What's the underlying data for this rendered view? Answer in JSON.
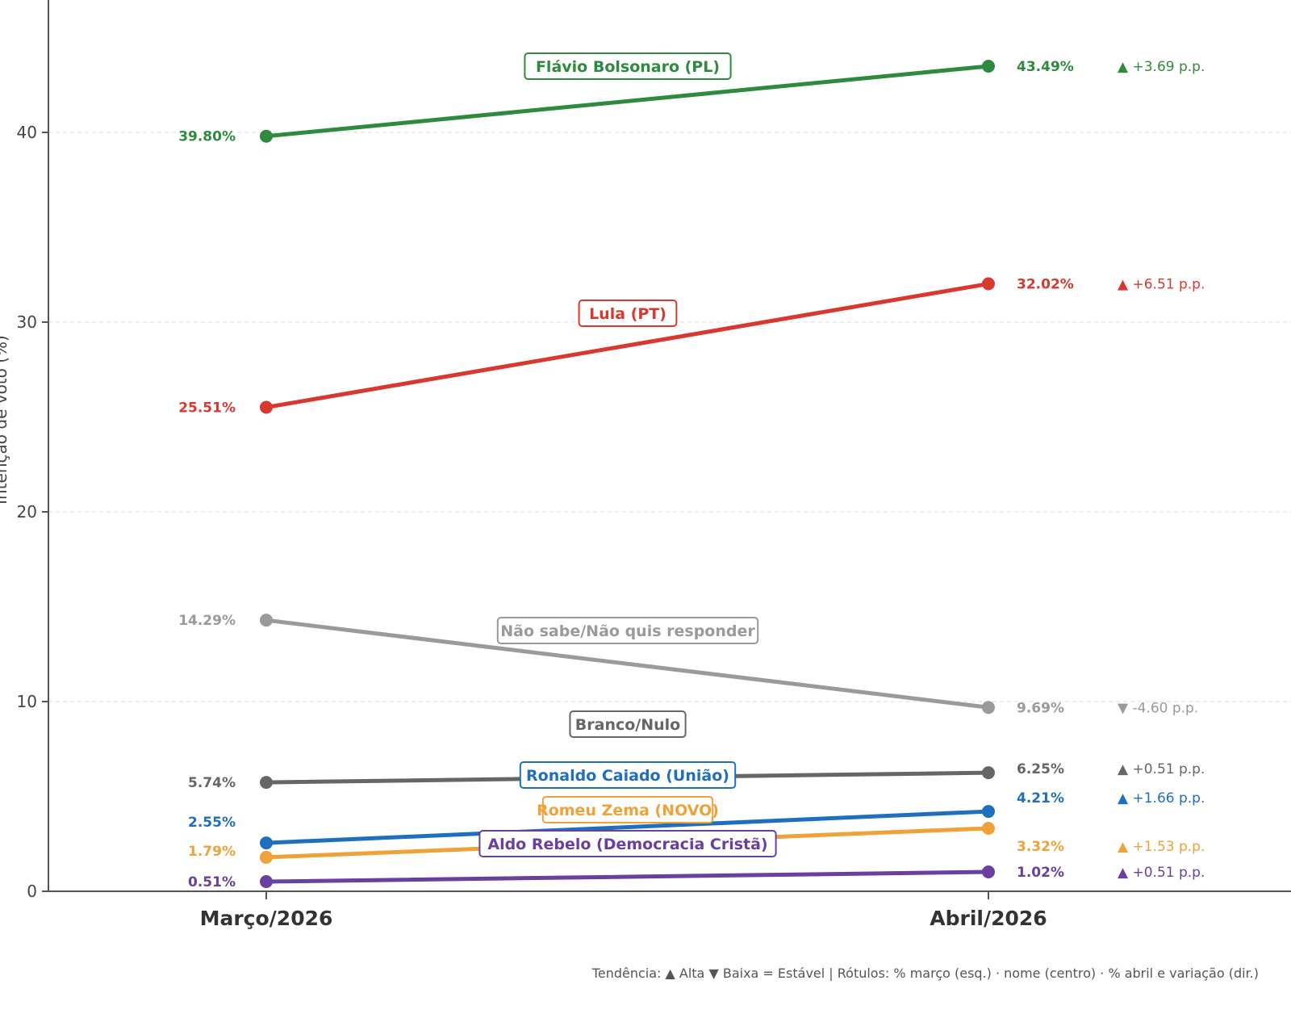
{
  "chart_data": {
    "type": "line",
    "title": "",
    "xlabel": "",
    "ylabel": "Intenção de voto (%)",
    "categories": [
      "Março/2026",
      "Abril/2026"
    ],
    "ylim": [
      0,
      45
    ],
    "yticks": [
      0,
      10,
      20,
      30,
      40
    ],
    "grid": true,
    "series": [
      {
        "name": "Flávio Bolsonaro (PL)",
        "color": "#2e8b3e",
        "values": [
          39.8,
          43.49
        ],
        "labels": [
          "39.80%",
          "43.49%"
        ],
        "change": "+3.69 p.p.",
        "trend": "up"
      },
      {
        "name": "Lula (PT)",
        "color": "#d9382f",
        "values": [
          25.51,
          32.02
        ],
        "labels": [
          "25.51%",
          "32.02%"
        ],
        "change": "+6.51 p.p.",
        "trend": "up"
      },
      {
        "name": "Não sabe/Não quis responder",
        "color": "#9a9a9a",
        "values": [
          14.29,
          9.69
        ],
        "labels": [
          "14.29%",
          "9.69%"
        ],
        "change": "-4.60 p.p.",
        "trend": "down"
      },
      {
        "name": "Branco/Nulo",
        "color": "#666666",
        "values": [
          5.74,
          6.25
        ],
        "labels": [
          "5.74%",
          "6.25%"
        ],
        "change": "+0.51 p.p.",
        "trend": "up"
      },
      {
        "name": "Ronaldo Caiado (União)",
        "color": "#1f6fbf",
        "values": [
          2.55,
          4.21
        ],
        "labels": [
          "2.55%",
          "4.21%"
        ],
        "change": "+1.66 p.p.",
        "trend": "up"
      },
      {
        "name": "Romeu Zema (NOVO)",
        "color": "#f0a23a",
        "values": [
          1.79,
          3.32
        ],
        "labels": [
          "1.79%",
          "3.32%"
        ],
        "change": "+1.53 p.p.",
        "trend": "up"
      },
      {
        "name": "Aldo Rebelo (Democracia Cristã)",
        "color": "#6a3fa0",
        "values": [
          0.51,
          1.02
        ],
        "labels": [
          "0.51%",
          "1.02%"
        ],
        "change": "+0.51 p.p.",
        "trend": "up"
      }
    ],
    "legend_note": "Tendência: ▲ Alta  ▼ Baixa  = Estável   |   Rótulos: % março (esq.) · nome (centro) · % abril e variação (dir.)"
  }
}
